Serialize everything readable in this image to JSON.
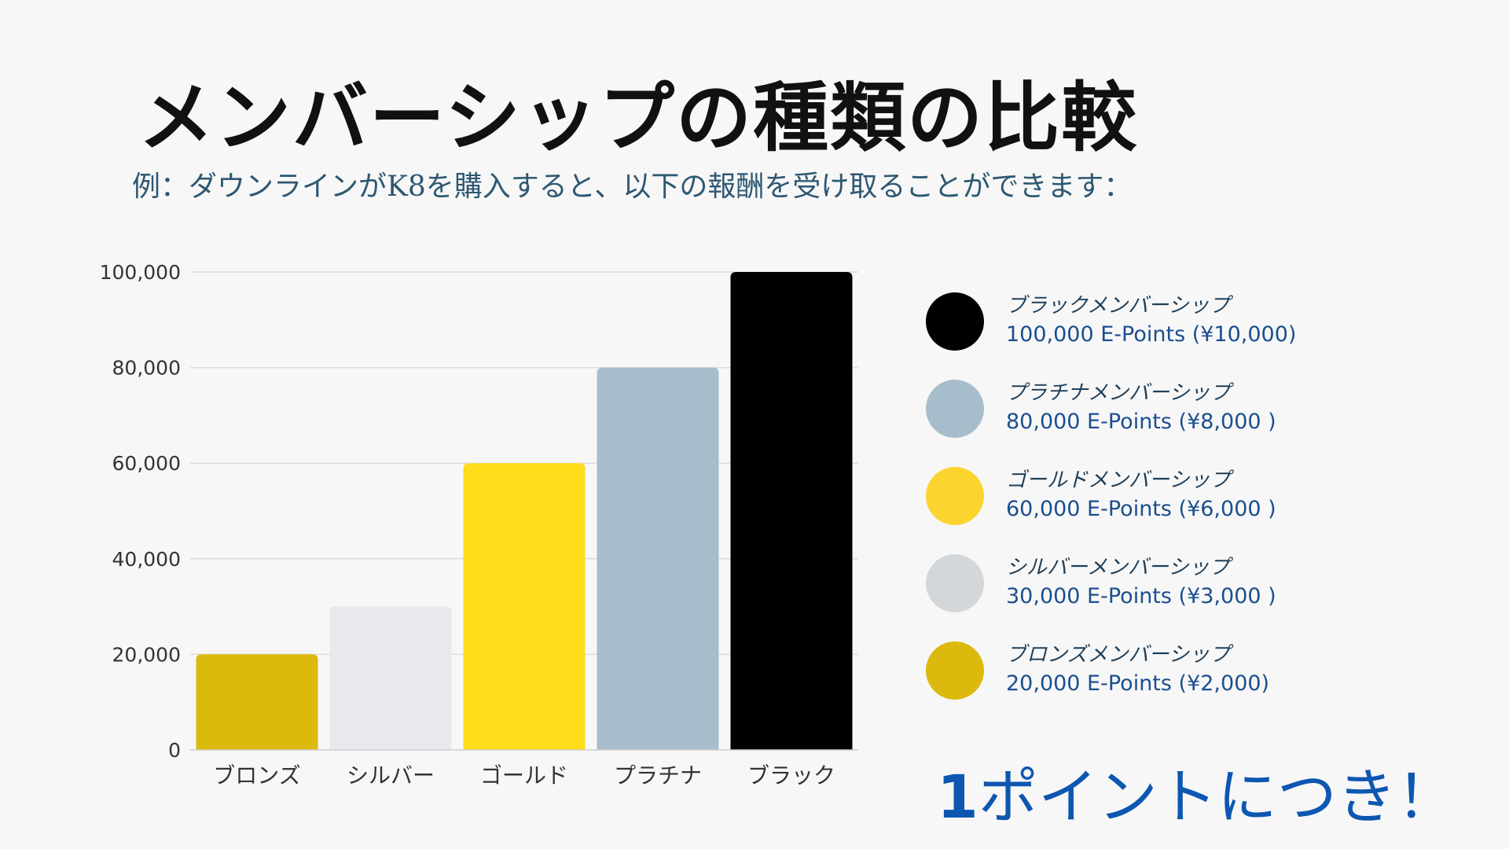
{
  "slide": {
    "title": "メンバーシップの種類の比較",
    "subtitle": "例：ダウンラインがK8を購入すると、以下の報酬を受け取ることができます："
  },
  "chart_data": {
    "type": "bar",
    "categories": [
      "ブロンズ",
      "シルバー",
      "ゴールド",
      "プラチナ",
      "ブラック"
    ],
    "values": [
      20000,
      30000,
      60000,
      80000,
      100000
    ],
    "colors": [
      "#dbb90d",
      "#e8e9ec",
      "#fedc1a",
      "#a8bdcb",
      "#000000"
    ],
    "y_ticks": [
      "0",
      "20,000",
      "40,000",
      "60,000",
      "80,000",
      "100,000"
    ],
    "ylim": [
      0,
      100000
    ],
    "grid": true,
    "legend_position": "right"
  },
  "legend": [
    {
      "name": "ブラックメンバーシップ",
      "points": "100,000 E-Points (¥10,000)",
      "color": "#000000"
    },
    {
      "name": "プラチナメンバーシップ",
      "points": "80,000 E-Points (¥8,000 )",
      "color": "#a8bdcb"
    },
    {
      "name": "ゴールドメンバーシップ",
      "points": "60,000 E-Points (¥6,000 )",
      "color": "#fbd42d"
    },
    {
      "name": "シルバーメンバーシップ",
      "points": "30,000 E-Points (¥3,000 )",
      "color": "#d3d7da"
    },
    {
      "name": "ブロンズメンバーシップ",
      "points": "20,000 E-Points (¥2,000)",
      "color": "#dbb90d"
    }
  ],
  "tagline": {
    "number": "1",
    "text": "ポイントにつき！"
  }
}
